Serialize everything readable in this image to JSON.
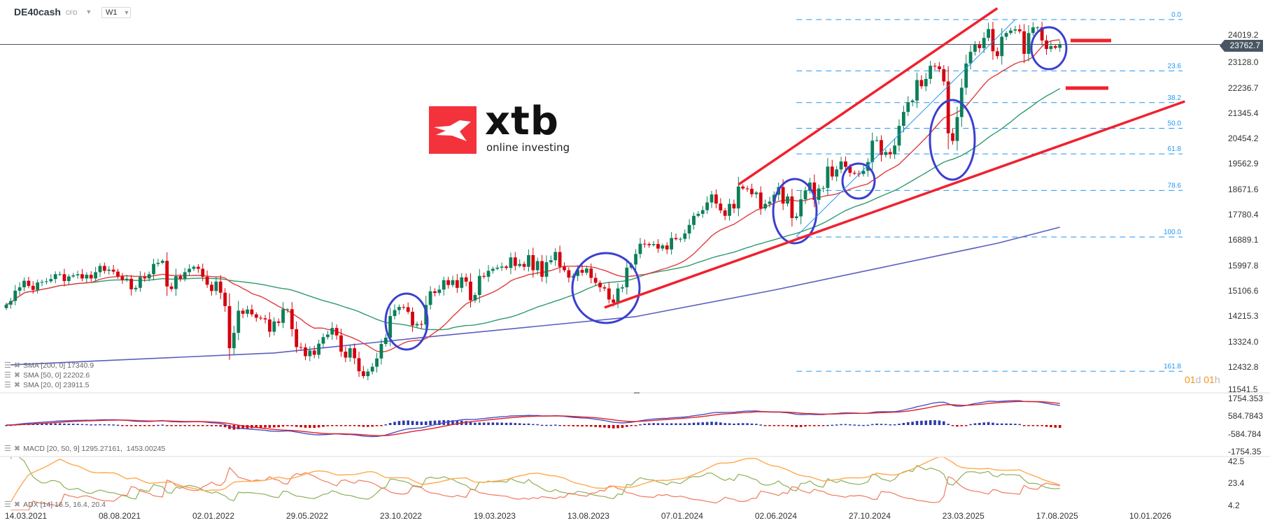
{
  "header": {
    "symbol": "DE40cash",
    "instrument_type": "CFD",
    "timeframe": "W1"
  },
  "logo": {
    "brand": "xtb",
    "tagline": "online investing",
    "color": "#f4323c"
  },
  "current_price": "23762.7",
  "countdown": {
    "days": "01",
    "d": "d",
    "hours": "01",
    "h": "h"
  },
  "legends": {
    "sma200": "SMA [200, 0] 17340.9",
    "sma50": "SMA [50, 0] 22202.6",
    "sma20": "SMA [20, 0] 23911.5",
    "macd": "MACD [20, 50, 9] 1295.27161,  1453.00245",
    "adx": "ADX [14] 16.5, 16.4, 20.4"
  },
  "icons": {
    "legend_menu": "menu-lines-icon",
    "legend_remove": "close-x-icon",
    "dropdown": "caret-down-icon"
  },
  "colors": {
    "up": "#0b7f5a",
    "down": "#d6000c",
    "sma20": "#e03c3c",
    "sma50": "#2e9a6e",
    "sma200": "#5b5fc0",
    "trend": "#f0212e",
    "highlight": "#3b3fcf",
    "fib": "#2196f3",
    "macd": "#4a50c0",
    "signal": "#e0202a",
    "adx": "#ffa94d",
    "di_plus": "#8db05a",
    "di_minus": "#f07a60"
  },
  "chart_data": [
    {
      "type": "candlestick",
      "x_start": "14.03.2021",
      "x_step_days": 7,
      "x_ticks": [
        "14.03.2021",
        "08.08.2021",
        "02.01.2022",
        "29.05.2022",
        "23.10.2022",
        "19.03.2023",
        "13.08.2023",
        "07.01.2024",
        "02.06.2024",
        "27.10.2024",
        "23.03.2025",
        "17.08.2025",
        "10.01.2026"
      ],
      "y_ticks": [
        "24019.2",
        "23128.0",
        "22236.7",
        "21345.4",
        "20454.2",
        "19562.9",
        "18671.6",
        "17780.4",
        "16889.1",
        "15997.8",
        "15106.6",
        "14215.3",
        "13324.0",
        "12432.8",
        "11541.5"
      ],
      "first_open": 14500,
      "closes": [
        14620,
        14750,
        15110,
        15230,
        15460,
        15280,
        15140,
        15400,
        15420,
        15440,
        15520,
        15690,
        15690,
        15450,
        15610,
        15650,
        15690,
        15540,
        15670,
        15540,
        15760,
        15980,
        15810,
        15850,
        15780,
        15610,
        15490,
        15530,
        15160,
        15210,
        15590,
        15540,
        15690,
        16050,
        16090,
        16160,
        15260,
        15170,
        15620,
        15530,
        15760,
        15880,
        15950,
        15880,
        15600,
        15320,
        15100,
        15430,
        15040,
        14570,
        13090,
        13630,
        14410,
        14300,
        14450,
        14280,
        14160,
        14140,
        14100,
        13670,
        14030,
        13980,
        14460,
        14460,
        13760,
        13130,
        13120,
        12810,
        13010,
        12860,
        13250,
        13480,
        13570,
        13800,
        13540,
        12970,
        12760,
        13090,
        12740,
        12280,
        12110,
        12270,
        12440,
        12730,
        13240,
        13460,
        14220,
        14430,
        14540,
        14530,
        14370,
        13890,
        13940,
        13920,
        14610,
        15090,
        15030,
        15150,
        15480,
        15310,
        15480,
        15210,
        15580,
        15430,
        14770,
        14960,
        15630,
        15600,
        15810,
        15880,
        15920,
        15960,
        15910,
        16280,
        15980,
        16050,
        15950,
        16360,
        15830,
        16150,
        15600,
        16110,
        16180,
        16470,
        15950,
        15830,
        15570,
        15630,
        15840,
        15740,
        15890,
        15560,
        15390,
        15230,
        15190,
        14800,
        14690,
        15190,
        15230,
        15920,
        16030,
        16400,
        16760,
        16750,
        16710,
        16750,
        16590,
        16700,
        16560,
        16960,
        16920,
        16930,
        17120,
        17420,
        17740,
        17810,
        17940,
        18210,
        18490,
        18170,
        17930,
        17740,
        18160,
        18000,
        18770,
        18700,
        18690,
        18500,
        18560,
        18000,
        18160,
        18240,
        18480,
        18750,
        18170,
        18420,
        17660,
        17720,
        18320,
        18630,
        18910,
        18300,
        18700,
        18720,
        19470,
        19120,
        19370,
        19650,
        19460,
        19250,
        19220,
        19210,
        19320,
        19630,
        20380,
        20400,
        19880,
        19980,
        19900,
        20210,
        20900,
        21390,
        21730,
        21790,
        22510,
        22290,
        22550,
        23010,
        22990,
        22890,
        22460,
        20640,
        20370,
        21210,
        22240,
        23090,
        23500,
        23770,
        23630,
        23990,
        24300,
        23520,
        23350,
        24030,
        24160,
        24250,
        24290,
        24220,
        23430,
        24160,
        24360,
        24360,
        23900,
        23600,
        23700,
        23640,
        23762.7
      ],
      "sma200_points": [
        [
          "21.03.2021",
          12505
        ],
        [
          "08.05.2022",
          12923
        ],
        [
          "25.12.2022",
          13463
        ],
        [
          "26.11.2023",
          14199
        ],
        [
          "30.06.2024",
          15132
        ],
        [
          "15.06.2025",
          16777
        ],
        [
          "21.09.2025",
          17341
        ]
      ],
      "fibonacci": {
        "from": "04.08.2024",
        "high": 24633,
        "low": 16998,
        "levels": [
          "0.0",
          "23.6",
          "38.2",
          "50.0",
          "61.8",
          "78.6",
          "100.0",
          "161.8"
        ]
      },
      "trend_lines": [
        {
          "from": [
            "05.05.2024",
            18838
          ],
          "to": [
            "15.06.2025",
            25030
          ]
        },
        {
          "from": [
            "08.10.2023",
            14518
          ],
          "to": [
            "05.04.2026",
            21760
          ]
        }
      ],
      "thin_trend": {
        "from": [
          "04.08.2024",
          17022
        ],
        "to": [
          "13.07.2025",
          24633
        ]
      },
      "target_levels": [
        23896,
        22227
      ]
    },
    {
      "type": "line",
      "indicator": "MACD",
      "periods": [
        20,
        50,
        9
      ],
      "y_ticks": [
        "1754.353",
        "584.7843",
        "-584.784",
        "-1754.35"
      ]
    },
    {
      "type": "line",
      "indicator": "ADX",
      "period": 14,
      "y_ticks": [
        "42.5",
        "23.4",
        "4.2"
      ]
    }
  ]
}
